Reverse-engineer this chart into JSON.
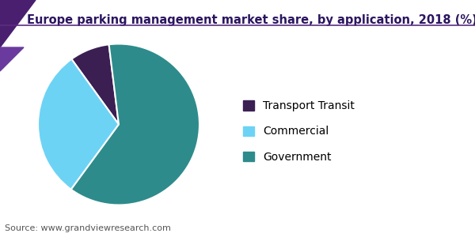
{
  "title": "Europe parking management market share, by application, 2018 (%)",
  "slices": [
    {
      "label": "Transport Transit",
      "value": 8,
      "color": "#3b1f52"
    },
    {
      "label": "Commercial",
      "value": 30,
      "color": "#6dd3f5"
    },
    {
      "label": "Government",
      "value": 62,
      "color": "#2e8b8b"
    }
  ],
  "source_text": "Source: www.grandviewresearch.com",
  "background_color": "#ffffff",
  "title_fontsize": 10.5,
  "legend_fontsize": 10,
  "source_fontsize": 8,
  "startangle": 97,
  "header_triangle_color": "#4a1f70",
  "header_line_color": "#5a2d82",
  "title_color": "#2b1560"
}
